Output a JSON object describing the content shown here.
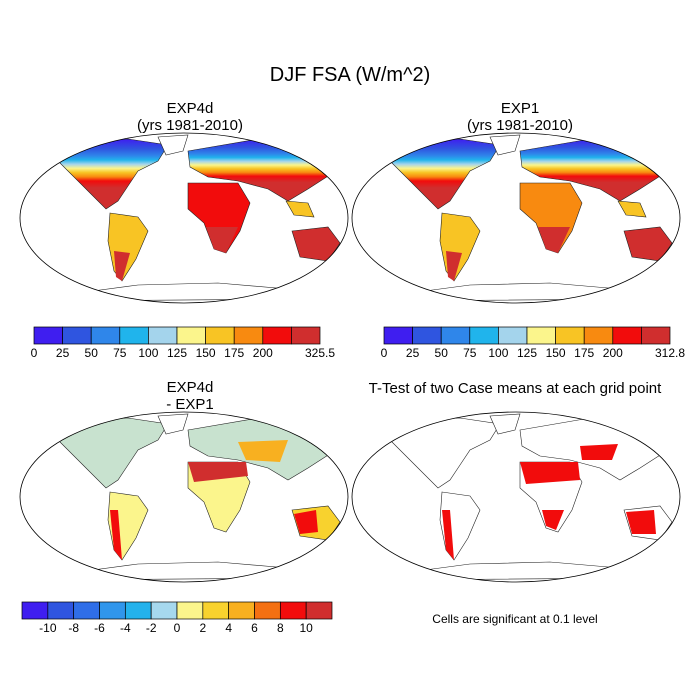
{
  "main_title": "DJF FSA (W/m^2)",
  "panels": [
    {
      "title_line1": "EXP4d",
      "title_line2": "(yrs 1981-2010)"
    },
    {
      "title_line1": "EXP1",
      "title_line2": "(yrs 1981-2010)"
    },
    {
      "title_line1": "EXP4d",
      "title_line2": "- EXP1"
    }
  ],
  "ttest_title": "T-Test of two Case means at each grid point",
  "ttest_note": "Cells are significant at 0.1 level",
  "chart_data": [
    {
      "type": "heatmap",
      "title": "EXP4d (yrs 1981-2010)",
      "colorbar": {
        "labels": [
          "0",
          "25",
          "50",
          "75",
          "100",
          "125",
          "150",
          "175",
          "200",
          "",
          "325.5"
        ],
        "colors": [
          "#3f1ef0",
          "#2f55e0",
          "#2f86ea",
          "#20b4ec",
          "#a4d4ec",
          "#fbf58c",
          "#f8c424",
          "#f88a10",
          "#f20c0c",
          "#d02e2e"
        ]
      }
    },
    {
      "type": "heatmap",
      "title": "EXP1 (yrs 1981-2010)",
      "colorbar": {
        "labels": [
          "0",
          "25",
          "50",
          "75",
          "100",
          "125",
          "150",
          "175",
          "200",
          "",
          "312.8"
        ],
        "colors": [
          "#3f1ef0",
          "#2f55e0",
          "#2f86ea",
          "#20b4ec",
          "#a4d4ec",
          "#fbf58c",
          "#f8c424",
          "#f88a10",
          "#f20c0c",
          "#d02e2e"
        ]
      }
    },
    {
      "type": "heatmap",
      "title": "EXP4d - EXP1",
      "colorbar": {
        "labels": [
          "-10",
          "-8",
          "-6",
          "-4",
          "-2",
          "0",
          "2",
          "4",
          "6",
          "8",
          "10"
        ],
        "colors": [
          "#3f1ef0",
          "#2f55e0",
          "#2f6ee8",
          "#3096ec",
          "#24b2ec",
          "#a6d8ee",
          "#fbf58c",
          "#f8d22e",
          "#f8b020",
          "#f47012",
          "#f20c0c",
          "#d02e2e"
        ]
      }
    },
    {
      "type": "heatmap",
      "title": "T-Test of two Case means at each grid point",
      "significance_color": "#f20c0c"
    }
  ]
}
